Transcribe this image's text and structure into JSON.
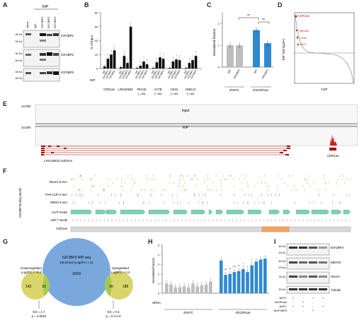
{
  "panels": {
    "A": {
      "label": "A",
      "rip_label": "RIP",
      "lanes": [
        "Input",
        "IgG",
        "IGF2BP1",
        "IGF2BP2",
        "IGF2BP3"
      ],
      "kd": [
        "80 Kd",
        "60 Kd",
        "80 Kd",
        "60 Kd",
        "80 Kd",
        "60 Kd"
      ],
      "rows": [
        "IGF2BP1",
        "IGF2BP2",
        "IGF2BP3"
      ]
    },
    "B": {
      "label": "B",
      "ylabel": "% of input",
      "rip_label": "RIP",
      "lane_labels": [
        "IgG",
        "IGF2BP1",
        "IGF2BP2",
        "IGF2BP3"
      ],
      "y_ticks": [
        "0",
        "20",
        "40",
        "60",
        "80"
      ],
      "groups": [
        "CDR1as",
        "LINC00632",
        "PEX16",
        "ACTB",
        "CD44",
        "HMGA2"
      ],
      "group_notes": [
        "",
        "",
        "(– ctrl)",
        "(+ ctrl)",
        "(+ ctrl)",
        "(+ ctrl)"
      ]
    },
    "C": {
      "label": "C",
      "ylabel": "Normalized fraction",
      "y_ticks": [
        "0",
        "1",
        "2"
      ],
      "bar_labels": [
        "IgG",
        "IGF2BP3",
        "IgG",
        "IGF2BP3"
      ],
      "groups": [
        "shNTC",
        "shCDR1as"
      ],
      "sig": [
        "**",
        "**"
      ]
    },
    "D": {
      "label": "D",
      "ylabel": "RIP: fold log2FC",
      "xlabel": "CDF",
      "annotations": [
        "CDR1as",
        "HMGA2",
        "CD44",
        "MYC"
      ],
      "y_ticks": [
        "8",
        "6",
        "4",
        "2",
        "0",
        "-2",
        "-4"
      ]
    },
    "E": {
      "label": "E",
      "tracks": [
        "Input",
        "RIP"
      ],
      "scale": [
        "10,000",
        "10,000"
      ],
      "isoform_label": "LINC00632 isoforms",
      "gene_label": "CDR1as"
    },
    "F": {
      "label": "F",
      "side_label": "IGF2BP binding Motifs",
      "tracks": [
        "SELEX 6-mer",
        "PAR-CLIP 4-mer",
        "RBNS 5-mer",
        "CLIP Peaks",
        "miR-7 seeds",
        "CDR1as"
      ]
    },
    "G": {
      "label": "G",
      "center_title": "IGF2BP3 RIP-seq",
      "center_sub1": "Enriched (Log2FC > 2)",
      "center_value": "1659",
      "left_title": "Downregulated",
      "left_sub": "Log2FC < -0.3",
      "right_title": "Upregulated",
      "right_sub": "Log2FC > 0.3",
      "left_only": "143",
      "left_overlap": "33",
      "right_overlap": "50",
      "right_only": "188",
      "left_stat1": "ES = 1.7",
      "left_stat2": "p = 0.0022",
      "right_stat1": "ES = 0.3",
      "right_stat2": "p = 0.4 e-6"
    },
    "H": {
      "label": "H",
      "ylabel": "Normalized fraction",
      "y_ticks": [
        "0",
        "1",
        "2",
        "3",
        "4",
        "5"
      ],
      "sirna_label": "siRNA",
      "groups": [
        "shNTC",
        "shCDR1as"
      ],
      "sig": [
        "***",
        "**",
        "***",
        "**",
        "*",
        "*",
        "*"
      ]
    },
    "I": {
      "label": "I",
      "rows": [
        "IGF2BP3",
        "MEF2C",
        "SNAI2",
        "Tubulin"
      ],
      "kd": [
        "80 Kd",
        "60 Kd",
        "60 Kd",
        "40 Kd",
        "30 Kd",
        "50 Kd"
      ],
      "treat_labels": [
        "siNTC",
        "siCDR1as",
        "siNTC",
        "siIGF2BP3"
      ]
    }
  },
  "chart_data": [
    {
      "type": "bar",
      "ylabel": "% of input",
      "ylim": [
        0,
        80
      ],
      "categories": [
        "CDR1as",
        "LINC00632",
        "PEX16",
        "ACTB",
        "CD44",
        "HMGA2"
      ],
      "series": [
        {
          "name": "IgG",
          "values": [
            3,
            2,
            1,
            1,
            1,
            1
          ]
        },
        {
          "name": "IGF2BP1",
          "values": [
            14,
            18,
            4,
            9,
            10,
            8
          ]
        },
        {
          "name": "IGF2BP2",
          "values": [
            20,
            8,
            10,
            16,
            13,
            12
          ]
        },
        {
          "name": "IGF2BP3",
          "values": [
            26,
            60,
            6,
            14,
            12,
            18
          ]
        }
      ]
    },
    {
      "type": "bar",
      "ylabel": "Normalized fraction",
      "ylim": [
        0,
        2.5
      ],
      "categories": [
        "shNTC IgG",
        "shNTC IGF2BP3",
        "shCDR1as IgG",
        "shCDR1as IGF2BP3"
      ],
      "values": [
        1.0,
        1.0,
        1.7,
        1.1
      ]
    },
    {
      "type": "bar",
      "ylabel": "Normalized fraction",
      "ylim": [
        0,
        5
      ],
      "series": [
        {
          "name": "shNTC",
          "values": [
            1.0,
            0.9,
            0.6,
            0.6,
            0.7,
            0.6,
            1.0,
            0.7,
            0.8,
            0.9,
            1.2
          ]
        },
        {
          "name": "shCDR1as",
          "values": [
            3.4,
            1.9,
            2.0,
            2.2,
            2.3,
            2.5,
            2.2,
            2.9,
            3.3,
            3.5,
            3.6
          ]
        }
      ]
    }
  ],
  "colors": {
    "igg": "#0a0a0a",
    "grey": "#bdbdbd",
    "blue": "#2f89d0",
    "red": "#c01515",
    "venn_blue": "#7aa8dc",
    "venn_yellow": "#d8d66a",
    "venn_green": "#a6c94e",
    "clip": "#7fcfb2",
    "orange": "#f5a35c",
    "motif_yellow": "#d9c07a",
    "motif_pink": "#e68bb4",
    "motif_blue": "#77a9d8"
  }
}
